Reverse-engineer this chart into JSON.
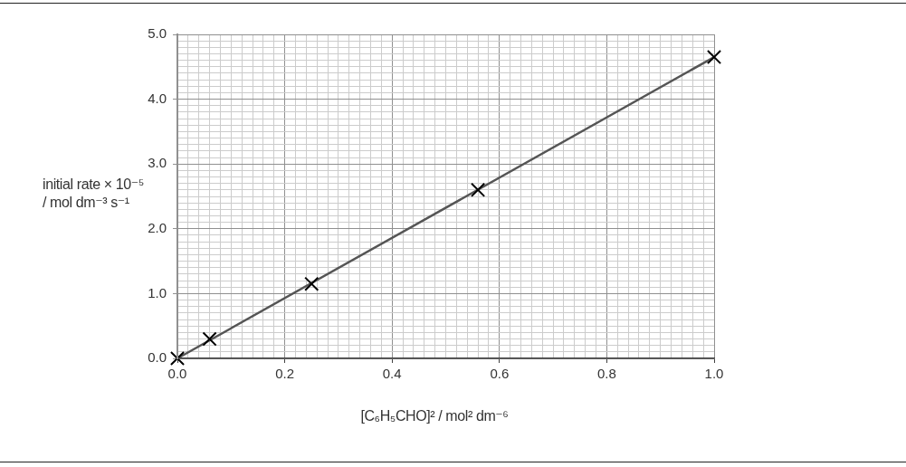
{
  "chart_data": {
    "type": "scatter",
    "xlabel": "[C₆H₅CHO]² / mol² dm⁻⁶",
    "ylabel": "initial rate × 10⁻⁵\n/ mol dm⁻³ s⁻¹",
    "series": [
      {
        "color": "#000000",
        "marker": "cross",
        "x": [
          0,
          0.06,
          0.25,
          0.56,
          1.0
        ],
        "values": [
          0,
          0.3,
          1.15,
          2.6,
          4.65
        ]
      },
      {
        "type": "line",
        "color": "#555555",
        "marker": "none",
        "x": [
          0,
          1.0
        ],
        "values": [
          0,
          4.65
        ]
      }
    ],
    "xlim": [
      0,
      1.0
    ],
    "ylim": [
      0,
      5.0
    ],
    "xticks": [
      {
        "value": 0,
        "label": "0.0"
      },
      {
        "value": 0.02,
        "label": null
      },
      {
        "value": 0.04,
        "label": null
      },
      {
        "value": 0.06,
        "label": null
      },
      {
        "value": 0.08,
        "label": null
      },
      {
        "value": 0.1,
        "label": null
      },
      {
        "value": 0.12,
        "label": null
      },
      {
        "value": 0.14,
        "label": null
      },
      {
        "value": 0.16,
        "label": null
      },
      {
        "value": 0.18,
        "label": null
      },
      {
        "value": 0.2,
        "label": "0.2"
      },
      {
        "value": 0.22,
        "label": null
      },
      {
        "value": 0.24,
        "label": null
      },
      {
        "value": 0.26,
        "label": null
      },
      {
        "value": 0.28,
        "label": null
      },
      {
        "value": 0.3,
        "label": null
      },
      {
        "value": 0.32,
        "label": null
      },
      {
        "value": 0.34,
        "label": null
      },
      {
        "value": 0.36,
        "label": null
      },
      {
        "value": 0.38,
        "label": null
      },
      {
        "value": 0.4,
        "label": "0.4"
      },
      {
        "value": 0.42,
        "label": null
      },
      {
        "value": 0.44,
        "label": null
      },
      {
        "value": 0.46,
        "label": null
      },
      {
        "value": 0.48,
        "label": null
      },
      {
        "value": 0.5,
        "label": null
      },
      {
        "value": 0.52,
        "label": null
      },
      {
        "value": 0.54,
        "label": null
      },
      {
        "value": 0.56,
        "label": null
      },
      {
        "value": 0.58,
        "label": null
      },
      {
        "value": 0.6,
        "label": "0.6"
      },
      {
        "value": 0.62,
        "label": null
      },
      {
        "value": 0.64,
        "label": null
      },
      {
        "value": 0.66,
        "label": null
      },
      {
        "value": 0.68,
        "label": null
      },
      {
        "value": 0.7,
        "label": null
      },
      {
        "value": 0.72,
        "label": null
      },
      {
        "value": 0.74,
        "label": null
      },
      {
        "value": 0.76,
        "label": null
      },
      {
        "value": 0.78,
        "label": null
      },
      {
        "value": 0.8,
        "label": "0.8"
      },
      {
        "value": 0.82,
        "label": null
      },
      {
        "value": 0.84,
        "label": null
      },
      {
        "value": 0.86,
        "label": null
      },
      {
        "value": 0.88,
        "label": null
      },
      {
        "value": 0.9,
        "label": null
      },
      {
        "value": 0.92,
        "label": null
      },
      {
        "value": 0.94,
        "label": null
      },
      {
        "value": 0.96,
        "label": null
      },
      {
        "value": 0.98,
        "label": null
      },
      {
        "value": 1.0,
        "label": "1.0"
      }
    ],
    "yticks": [
      {
        "value": 0,
        "label": "0.0"
      },
      {
        "value": 0.1,
        "label": null
      },
      {
        "value": 0.2,
        "label": null
      },
      {
        "value": 0.3,
        "label": null
      },
      {
        "value": 0.4,
        "label": null
      },
      {
        "value": 0.5,
        "label": null
      },
      {
        "value": 0.6,
        "label": null
      },
      {
        "value": 0.7,
        "label": null
      },
      {
        "value": 0.8,
        "label": null
      },
      {
        "value": 0.9,
        "label": null
      },
      {
        "value": 1.0,
        "label": "1.0"
      },
      {
        "value": 1.1,
        "label": null
      },
      {
        "value": 1.2,
        "label": null
      },
      {
        "value": 1.3,
        "label": null
      },
      {
        "value": 1.4,
        "label": null
      },
      {
        "value": 1.5,
        "label": null
      },
      {
        "value": 1.6,
        "label": null
      },
      {
        "value": 1.7,
        "label": null
      },
      {
        "value": 1.8,
        "label": null
      },
      {
        "value": 1.9,
        "label": null
      },
      {
        "value": 2.0,
        "label": "2.0"
      },
      {
        "value": 2.1,
        "label": null
      },
      {
        "value": 2.2,
        "label": null
      },
      {
        "value": 2.3,
        "label": null
      },
      {
        "value": 2.4,
        "label": null
      },
      {
        "value": 2.5,
        "label": null
      },
      {
        "value": 2.6,
        "label": null
      },
      {
        "value": 2.7,
        "label": null
      },
      {
        "value": 2.8,
        "label": null
      },
      {
        "value": 2.9,
        "label": null
      },
      {
        "value": 3.0,
        "label": "3.0"
      },
      {
        "value": 3.1,
        "label": null
      },
      {
        "value": 3.2,
        "label": null
      },
      {
        "value": 3.3,
        "label": null
      },
      {
        "value": 3.4,
        "label": null
      },
      {
        "value": 3.5,
        "label": null
      },
      {
        "value": 3.6,
        "label": null
      },
      {
        "value": 3.7,
        "label": null
      },
      {
        "value": 3.8,
        "label": null
      },
      {
        "value": 3.9,
        "label": null
      },
      {
        "value": 4.0,
        "label": "4.0"
      },
      {
        "value": 4.1,
        "label": null
      },
      {
        "value": 4.2,
        "label": null
      },
      {
        "value": 4.3,
        "label": null
      },
      {
        "value": 4.4,
        "label": null
      },
      {
        "value": 4.5,
        "label": null
      },
      {
        "value": 4.6,
        "label": null
      },
      {
        "value": 4.7,
        "label": null
      },
      {
        "value": 4.8,
        "label": null
      },
      {
        "value": 4.9,
        "label": null
      },
      {
        "value": 5.0,
        "label": "5.0"
      }
    ],
    "grid": true,
    "legend": false
  }
}
